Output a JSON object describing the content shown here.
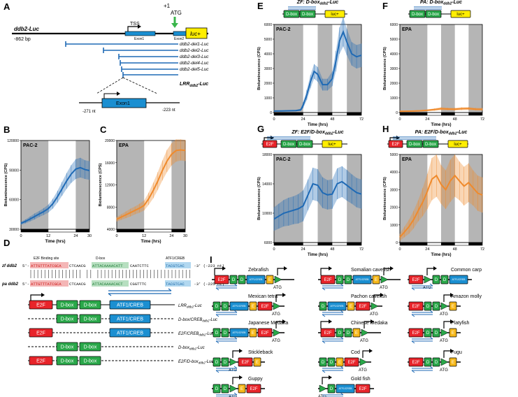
{
  "colors": {
    "blue": "#1f6ab5",
    "orange": "#ef8a2c",
    "e2f": "#e8242a",
    "dbox": "#2aa84a",
    "atf": "#1b8fd1",
    "E": "#f6b81a",
    "luc": "#ffee00",
    "shade": "#a8a8a8"
  },
  "panelA": {
    "letter": "A",
    "construct": "ddb2-Luc",
    "start": "-862 bp",
    "atg_top": "+1",
    "atg": "ATG",
    "tss": "TSS",
    "exon1": "Exon1",
    "exon2": "Exon2",
    "luc": "luc+",
    "dels": [
      "ddb2-del1-Luc",
      "ddb2-del2-Luc",
      "ddb2-del3-Luc",
      "ddb2-del4-Luc",
      "ddb2-del5-Luc"
    ],
    "lrr": "LRR",
    "lrr_sub": "ddb2",
    "lrr_suffix": "-Luc",
    "left_nt": "-271 nt",
    "right_nt": "-223 nt",
    "inset_exon": "Exon1"
  },
  "panelB": {
    "letter": "B",
    "cell": "PAC-2",
    "ylabel": "Bioluminescence (CPS)",
    "xlabel": "Time (hrs)",
    "yticks": [
      "30000",
      "60000",
      "90000",
      "120000"
    ],
    "xticks": [
      "0",
      "12",
      "24",
      "30"
    ]
  },
  "panelC": {
    "letter": "C",
    "cell": "EPA",
    "ylabel": "Bioluminescence (CPS)",
    "xlabel": "Time (hrs)",
    "yticks": [
      "4000",
      "8000",
      "12000",
      "16000",
      "20000"
    ],
    "xticks": [
      "0",
      "12",
      "24",
      "30"
    ]
  },
  "panelD": {
    "letter": "D",
    "e2f_site": "E2F Binding site",
    "dbox": "D-box",
    "atf": "ATF1/CREB",
    "zf_label": "zf ddb2",
    "pa_label": "pa ddb2",
    "zf_seq": "5'- ATTGTTTATCGCACTCAACGATTACAAAACATTCAATCTTCTACGTCAC -3' (-223 nt)",
    "zf_seq_parts": [
      "5'- ",
      "ATTGTTTATCGCA",
      "CTCAACG",
      "ATTACAAAACATT",
      "CAATCTTC",
      "TACGTCAC",
      " -3' (-223 nt)"
    ],
    "pa_seq_parts": [
      "5'- ",
      "ATTGTTTATCGCA",
      "CTCAACG",
      "ATTACAAAACACT",
      "CGGTTTC",
      "TACGTCAC",
      " -3' (-225 nt)"
    ],
    "e2f": "E2F",
    "atf_box": "ATF1/CREB",
    "dbox_box": "D-box",
    "constructs": [
      "LRR",
      "D-box/CREB",
      "E2F/CREB",
      "D-box",
      "E2F/D-box"
    ],
    "sub": "ddb2",
    "suffix": "-Luc"
  },
  "panelE": {
    "letter": "E",
    "title": "ZF: D-box",
    "title_sub": "ddb2",
    "title_suffix": "-Luc",
    "cell": "PAC-2",
    "ylabel": "Bioluminescence (CPS)",
    "xlabel": "Time (hrs)",
    "yticks": [
      "0",
      "1000",
      "2000",
      "3000",
      "4000",
      "5000",
      "6000"
    ],
    "xticks": [
      "0",
      "24",
      "48",
      "72"
    ]
  },
  "panelF": {
    "letter": "F",
    "title": "PA: D-box",
    "title_sub": "ddb2",
    "title_suffix": "-Luc",
    "cell": "EPA",
    "ylabel": "Bioluminescence (CPS)",
    "xlabel": "Time (hrs)",
    "yticks": [
      "0",
      "1000",
      "2000",
      "3000",
      "4000",
      "5000",
      "6000"
    ],
    "xticks": [
      "0",
      "24",
      "48",
      "72"
    ]
  },
  "panelG": {
    "letter": "G",
    "title": "ZF: E2F/D-box",
    "title_sub": "ddb2",
    "title_suffix": "-Luc",
    "cell": "PAC-2",
    "ylabel": "Bioluminescence (CPS)",
    "xlabel": "Time (hrs)",
    "yticks": [
      "6000",
      "10000",
      "14000",
      "18000"
    ],
    "xticks": [
      "0",
      "24",
      "48",
      "72"
    ]
  },
  "panelH": {
    "letter": "H",
    "title": "PA: E2F/D-box",
    "title_sub": "ddb2",
    "title_suffix": "-Luc",
    "cell": "EPA",
    "ylabel": "Bioluminescence (CPS)",
    "xlabel": "Time (hrs)",
    "yticks": [
      "0",
      "1000",
      "2000",
      "3000",
      "4000",
      "5000"
    ],
    "xticks": [
      "0",
      "24",
      "48",
      "72"
    ]
  },
  "panelI": {
    "letter": "I",
    "atg": "ATG",
    "atf": "ATF1/CREB",
    "e2f": "E2F",
    "d": "D",
    "e": "E",
    "species": [
      "Zebrafish",
      "Somalian cavefish",
      "Common carp",
      "Mexican tetra",
      "Pachon cavefish",
      "Amazon molly",
      "Japanese Medaka",
      "Chinese Medaka",
      "Platyfish",
      "Stickleback",
      "Cod",
      "Fugu",
      "Guppy",
      "Gold fish"
    ]
  },
  "box_labels": {
    "luc": "luc+",
    "dbox": "D-box",
    "e2f": "E2F"
  }
}
